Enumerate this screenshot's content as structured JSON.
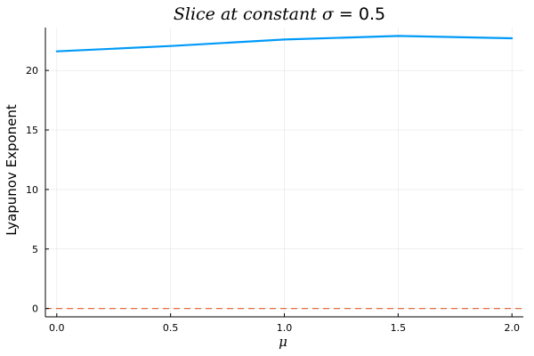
{
  "chart_data": {
    "type": "line",
    "title": {
      "math_text": "Slice at constant σ = ",
      "value_text": "0.5"
    },
    "xlabel": "μ",
    "ylabel": "Lyapunov Exponent",
    "xlim": [
      -0.05,
      2.05
    ],
    "ylim": [
      -0.7,
      23.6
    ],
    "x_ticks": [
      0.0,
      0.5,
      1.0,
      1.5,
      2.0
    ],
    "x_tick_labels": [
      "0.0",
      "0.5",
      "1.0",
      "1.5",
      "2.0"
    ],
    "y_ticks": [
      0,
      5,
      10,
      15,
      20
    ],
    "y_tick_labels": [
      "0",
      "5",
      "10",
      "15",
      "20"
    ],
    "grid": true,
    "legend": "none",
    "series": [
      {
        "x": [
          0.0,
          0.5,
          1.0,
          1.5,
          2.0
        ],
        "values": [
          21.6,
          22.05,
          22.6,
          22.9,
          22.7
        ],
        "color": "#009af9",
        "style": "solid"
      }
    ],
    "reference_line": {
      "y": 0,
      "color": "#e26f46",
      "style": "dashed"
    }
  }
}
